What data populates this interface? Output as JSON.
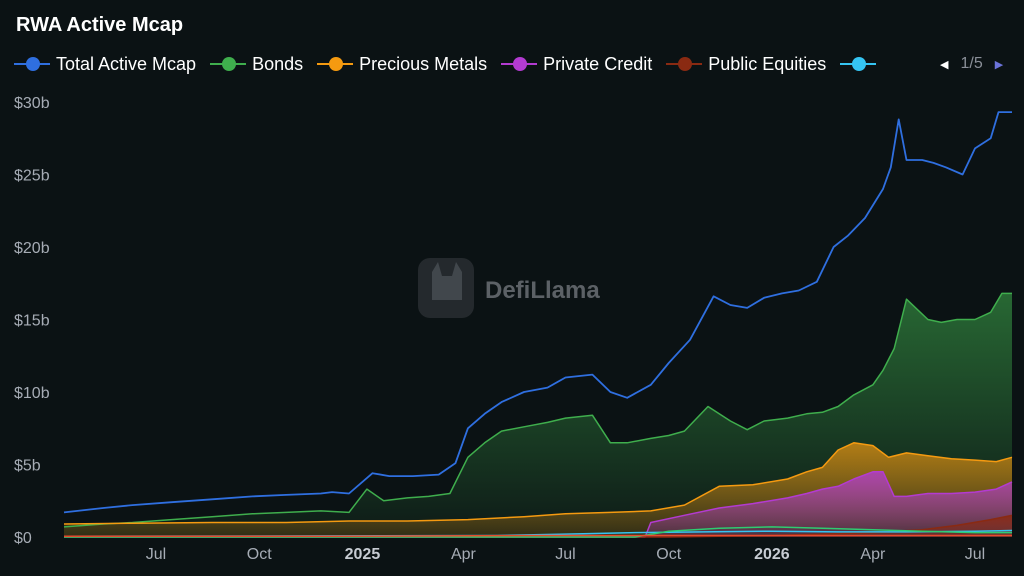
{
  "title": "RWA Active Mcap",
  "watermark": "DefiLlama",
  "legend": {
    "items": [
      {
        "label": "Total Active Mcap",
        "color": "#2f6fe0"
      },
      {
        "label": "Bonds",
        "color": "#3fae4d"
      },
      {
        "label": "Precious Metals",
        "color": "#f59a10"
      },
      {
        "label": "Private Credit",
        "color": "#b33bd1"
      },
      {
        "label": "Public Equities",
        "color": "#8a2a12"
      },
      {
        "label": "",
        "color": "#35c4f2"
      }
    ],
    "page": "1/5"
  },
  "chart_data": {
    "type": "area",
    "title": "RWA Active Mcap",
    "x_ticks": [
      "Jul",
      "Oct",
      "2025",
      "Apr",
      "Jul",
      "Oct",
      "2026",
      "Apr",
      "Jul"
    ],
    "y_ticks": [
      "$0",
      "$5b",
      "$10b",
      "$15b",
      "$20b",
      "$25b",
      "$30b"
    ],
    "ylim": [
      0,
      30
    ],
    "y_unit": "billions USD",
    "x_range": [
      "2024-04-10",
      "2026-08-03"
    ],
    "grid": false,
    "legend_position": "top",
    "series": [
      {
        "name": "Total Active Mcap",
        "color": "#2f6fe0",
        "fill": false,
        "x": [
          "2024-04-10",
          "2024-05-15",
          "2024-06-10",
          "2024-07-15",
          "2024-08-20",
          "2024-09-25",
          "2024-10-25",
          "2024-11-25",
          "2024-12-05",
          "2024-12-20",
          "2025-01-10",
          "2025-01-25",
          "2025-02-15",
          "2025-03-10",
          "2025-03-25",
          "2025-04-05",
          "2025-04-20",
          "2025-05-05",
          "2025-05-25",
          "2025-06-15",
          "2025-07-01",
          "2025-07-25",
          "2025-08-10",
          "2025-08-25",
          "2025-09-15",
          "2025-10-01",
          "2025-10-20",
          "2025-11-10",
          "2025-11-25",
          "2025-12-10",
          "2025-12-25",
          "2026-01-10",
          "2026-01-25",
          "2026-02-10",
          "2026-02-25",
          "2026-03-10",
          "2026-03-25",
          "2026-04-10",
          "2026-04-17",
          "2026-04-24",
          "2026-05-01",
          "2026-05-15",
          "2026-05-25",
          "2026-06-05",
          "2026-06-20",
          "2026-07-01",
          "2026-07-15",
          "2026-07-22",
          "2026-08-03"
        ],
        "values": [
          1.7,
          2.0,
          2.2,
          2.4,
          2.6,
          2.8,
          2.9,
          3.0,
          3.1,
          3.0,
          4.4,
          4.2,
          4.2,
          4.3,
          5.1,
          7.5,
          8.5,
          9.3,
          10.0,
          10.3,
          11.0,
          11.2,
          10.0,
          9.6,
          10.5,
          12.0,
          13.6,
          16.6,
          16.0,
          15.8,
          16.5,
          16.8,
          17.0,
          17.6,
          20.0,
          20.8,
          22.0,
          24.0,
          25.5,
          28.8,
          26.0,
          26.0,
          25.8,
          25.5,
          25.0,
          26.8,
          27.5,
          29.3,
          29.3
        ]
      },
      {
        "name": "Bonds",
        "color": "#3fae4d",
        "fill": true,
        "x": [
          "2024-04-10",
          "2024-05-15",
          "2024-06-10",
          "2024-07-15",
          "2024-08-20",
          "2024-09-25",
          "2024-10-25",
          "2024-11-25",
          "2024-12-20",
          "2025-01-05",
          "2025-01-20",
          "2025-02-10",
          "2025-03-01",
          "2025-03-20",
          "2025-04-05",
          "2025-04-20",
          "2025-05-05",
          "2025-05-25",
          "2025-06-15",
          "2025-07-01",
          "2025-07-25",
          "2025-08-10",
          "2025-08-25",
          "2025-09-15",
          "2025-10-01",
          "2025-10-15",
          "2025-11-05",
          "2025-11-25",
          "2025-12-10",
          "2025-12-25",
          "2026-01-15",
          "2026-02-01",
          "2026-02-15",
          "2026-03-01",
          "2026-03-15",
          "2026-04-01",
          "2026-04-10",
          "2026-04-20",
          "2026-05-01",
          "2026-05-20",
          "2026-06-01",
          "2026-06-15",
          "2026-07-01",
          "2026-07-15",
          "2026-07-25",
          "2026-08-03"
        ],
        "values": [
          0.7,
          0.9,
          1.0,
          1.2,
          1.4,
          1.6,
          1.7,
          1.8,
          1.7,
          3.3,
          2.5,
          2.7,
          2.8,
          3.0,
          5.5,
          6.5,
          7.3,
          7.6,
          7.9,
          8.2,
          8.4,
          6.5,
          6.5,
          6.8,
          7.0,
          7.3,
          9.0,
          8.0,
          7.4,
          8.0,
          8.2,
          8.5,
          8.6,
          9.0,
          9.8,
          10.5,
          11.5,
          13.0,
          16.4,
          15.0,
          14.8,
          15.0,
          15.0,
          15.5,
          16.8,
          16.8
        ]
      },
      {
        "name": "Precious Metals",
        "color": "#f59a10",
        "fill": true,
        "x": [
          "2024-04-10",
          "2024-06-10",
          "2024-08-20",
          "2024-10-25",
          "2024-12-20",
          "2025-02-10",
          "2025-04-05",
          "2025-05-25",
          "2025-07-01",
          "2025-08-10",
          "2025-09-15",
          "2025-10-15",
          "2025-11-15",
          "2025-12-15",
          "2026-01-15",
          "2026-02-01",
          "2026-02-15",
          "2026-03-01",
          "2026-03-15",
          "2026-04-01",
          "2026-04-15",
          "2026-05-01",
          "2026-05-20",
          "2026-06-10",
          "2026-07-01",
          "2026-07-20",
          "2026-08-03"
        ],
        "values": [
          0.9,
          0.95,
          1.0,
          1.0,
          1.1,
          1.1,
          1.2,
          1.4,
          1.6,
          1.7,
          1.8,
          2.2,
          3.5,
          3.6,
          4.0,
          4.5,
          4.8,
          6.0,
          6.5,
          6.3,
          5.5,
          5.8,
          5.6,
          5.4,
          5.3,
          5.2,
          5.5
        ]
      },
      {
        "name": "Private Credit",
        "color": "#b33bd1",
        "fill": true,
        "x": [
          "2024-04-10",
          "2025-08-25",
          "2025-09-10",
          "2025-09-15",
          "2025-10-15",
          "2025-11-15",
          "2025-12-15",
          "2026-01-15",
          "2026-02-01",
          "2026-02-15",
          "2026-03-01",
          "2026-03-15",
          "2026-04-01",
          "2026-04-10",
          "2026-04-20",
          "2026-05-01",
          "2026-05-20",
          "2026-06-10",
          "2026-07-01",
          "2026-07-20",
          "2026-08-03"
        ],
        "values": [
          0,
          0,
          0,
          1.0,
          1.5,
          2.0,
          2.3,
          2.7,
          3.0,
          3.3,
          3.5,
          4.0,
          4.5,
          4.5,
          2.8,
          2.8,
          3.0,
          3.0,
          3.1,
          3.3,
          3.8
        ]
      },
      {
        "name": "Public Equities",
        "color": "#8a2a12",
        "fill": true,
        "x": [
          "2024-04-10",
          "2025-10-01",
          "2026-01-01",
          "2026-04-01",
          "2026-05-15",
          "2026-06-15",
          "2026-07-15",
          "2026-08-03"
        ],
        "values": [
          0,
          0,
          0.1,
          0.3,
          0.5,
          0.8,
          1.2,
          1.5
        ]
      },
      {
        "name": "",
        "color": "#35c4f2",
        "fill": false,
        "x": [
          "2024-04-10",
          "2025-05-01",
          "2025-07-01",
          "2025-09-01",
          "2025-11-01",
          "2026-01-01",
          "2026-03-01",
          "2026-05-01",
          "2026-07-01",
          "2026-08-03"
        ],
        "values": [
          0.05,
          0.1,
          0.2,
          0.3,
          0.35,
          0.4,
          0.35,
          0.35,
          0.4,
          0.45
        ]
      },
      {
        "name": "",
        "color": "#2ecc71",
        "fill": false,
        "x": [
          "2024-04-10",
          "2025-09-01",
          "2025-10-01",
          "2025-11-15",
          "2026-01-01",
          "2026-02-15",
          "2026-04-01",
          "2026-05-15",
          "2026-07-01",
          "2026-08-03"
        ],
        "values": [
          0,
          0,
          0.4,
          0.6,
          0.7,
          0.6,
          0.5,
          0.4,
          0.3,
          0.3
        ]
      },
      {
        "name": "",
        "color": "#e8492c",
        "fill": false,
        "x": [
          "2024-04-10",
          "2024-12-01",
          "2025-06-01",
          "2025-12-01",
          "2026-08-03"
        ],
        "values": [
          0.05,
          0.05,
          0.1,
          0.1,
          0.1
        ]
      }
    ]
  }
}
